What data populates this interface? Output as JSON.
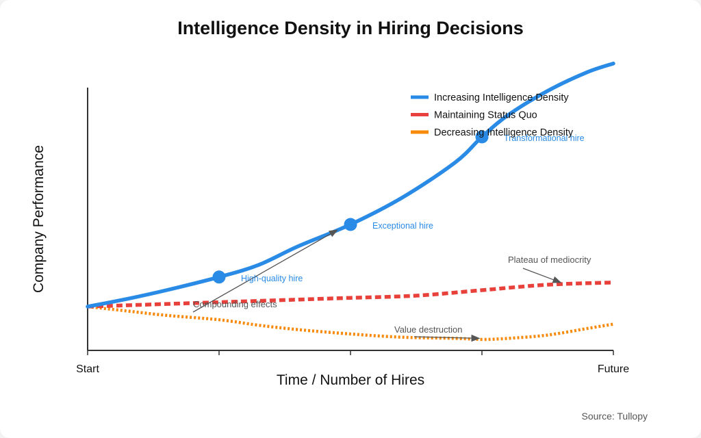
{
  "chart_data": {
    "type": "line",
    "title": "Intelligence Density in Hiring Decisions",
    "xlabel": "Time / Number of Hires",
    "ylabel": "Company Performance",
    "x_tick_labels": [
      {
        "x": 0,
        "label": "Start"
      },
      {
        "x": 4,
        "label": "Future"
      }
    ],
    "xlim": [
      0,
      4
    ],
    "ylim": [
      -0.3,
      2.1
    ],
    "grid": false,
    "legend_position": "top-right",
    "series": [
      {
        "name": "Increasing Intelligence Density",
        "color": "#2a8be6",
        "style": "solid",
        "x": [
          0,
          0.3,
          0.6,
          1.0,
          1.3,
          1.6,
          2.0,
          2.4,
          2.8,
          3.0,
          3.2,
          3.5,
          3.8,
          4.0
        ],
        "y": [
          0,
          0.07,
          0.15,
          0.27,
          0.38,
          0.55,
          0.75,
          1.0,
          1.32,
          1.55,
          1.75,
          1.97,
          2.14,
          2.22
        ]
      },
      {
        "name": "Maintaining Status Quo",
        "color": "#e8413c",
        "style": "dashed",
        "x": [
          0,
          0.5,
          1.0,
          1.5,
          2.0,
          2.5,
          3.0,
          3.5,
          4.0
        ],
        "y": [
          0,
          0.02,
          0.04,
          0.06,
          0.08,
          0.1,
          0.15,
          0.2,
          0.22
        ]
      },
      {
        "name": "Decreasing Intelligence Density",
        "color": "#f7890b",
        "style": "dotted",
        "x": [
          0,
          0.3,
          0.6,
          1.0,
          1.3,
          1.6,
          2.0,
          2.4,
          2.8,
          3.0,
          3.2,
          3.5,
          3.8,
          4.0
        ],
        "y": [
          0,
          -0.04,
          -0.08,
          -0.12,
          -0.17,
          -0.21,
          -0.25,
          -0.28,
          -0.29,
          -0.3,
          -0.29,
          -0.26,
          -0.2,
          -0.16
        ]
      }
    ],
    "markers": [
      {
        "x": 1,
        "y": 0.27,
        "label": "High-quality hire"
      },
      {
        "x": 2,
        "y": 0.75,
        "label": "Exceptional hire"
      },
      {
        "x": 3,
        "y": 1.55,
        "label": "Transformational hire"
      }
    ],
    "annotations": [
      {
        "text": "Compounding effects",
        "x": 0.8,
        "y": 0.02,
        "arrow_to_x": 1.9,
        "arrow_to_y": 0.7
      },
      {
        "text": "Plateau of mediocrity",
        "x": 3.2,
        "y": 0.37,
        "arrow_to_x": 3.6,
        "arrow_to_y": 0.22
      },
      {
        "text": "Value destruction",
        "x": 2.4,
        "y": -0.2,
        "arrow_to_x": 2.98,
        "arrow_to_y": -0.29
      }
    ]
  },
  "source": "Source: Tullopy"
}
